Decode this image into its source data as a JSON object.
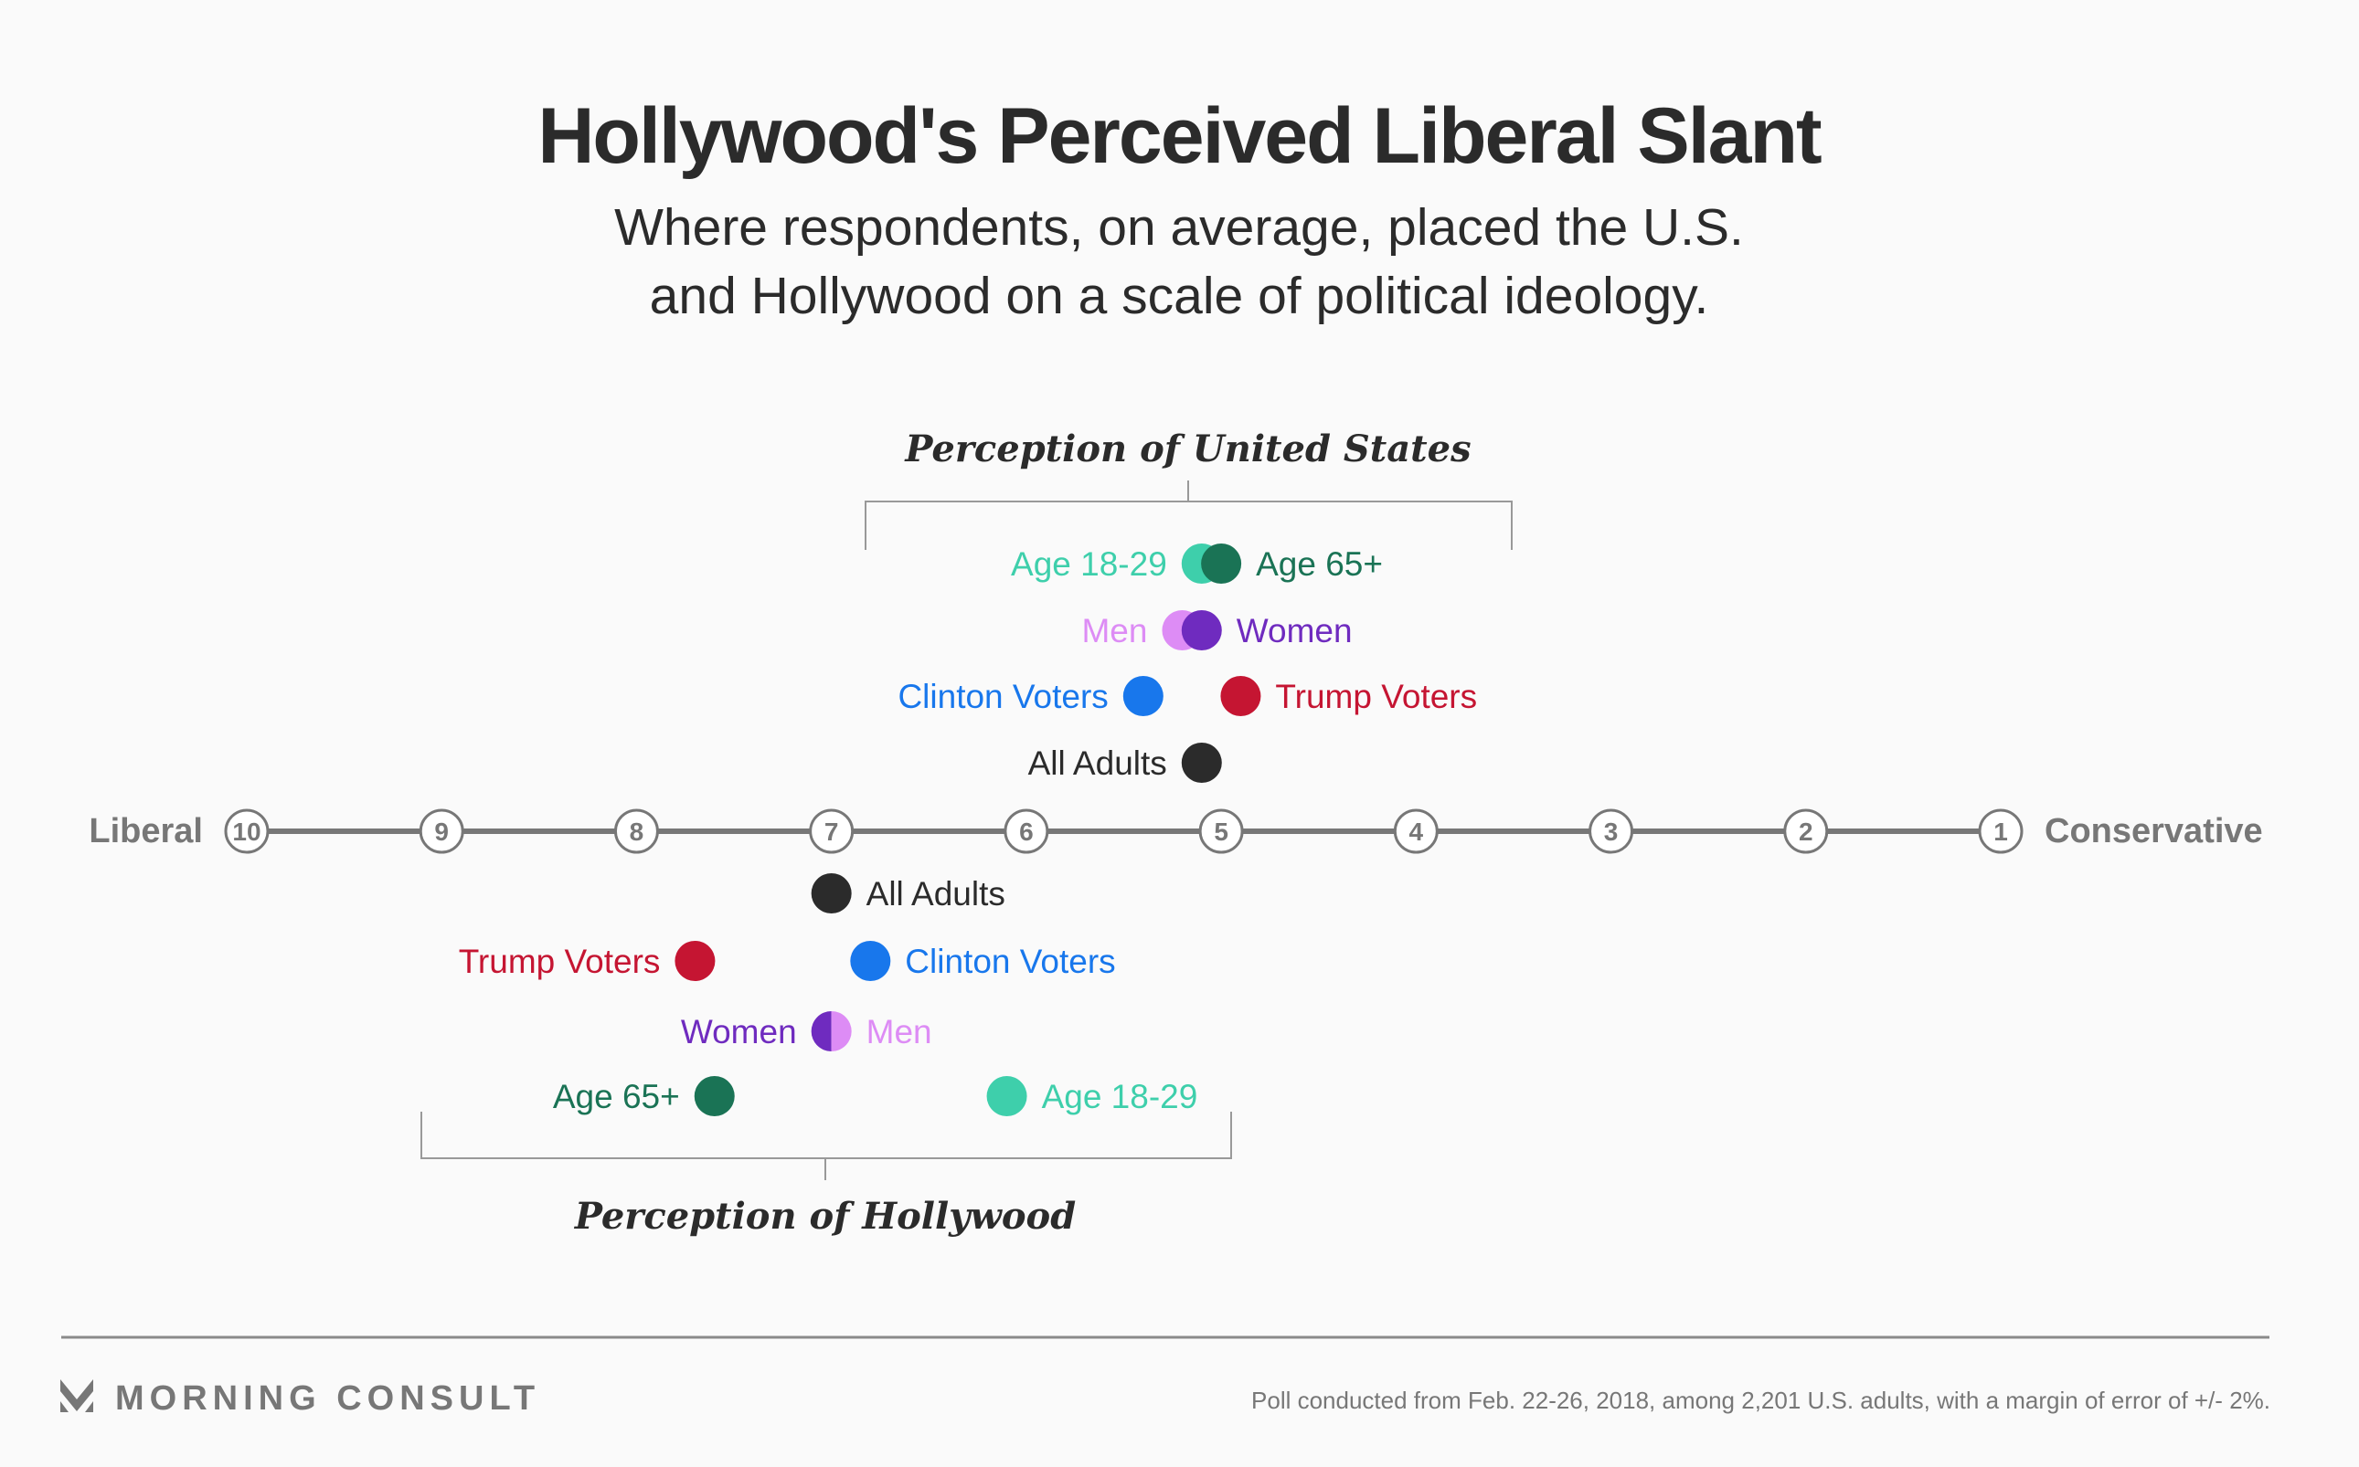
{
  "header": {
    "title": "Hollywood's Perceived Liberal Slant",
    "subtitle_lines": [
      "Where respondents, on average, placed the U.S.",
      "and Hollywood on a scale of political ideology."
    ]
  },
  "footer": {
    "brand": "MORNING CONSULT",
    "logo_icon": "morning-consult-chevron-logo",
    "footnote": "Poll conducted from Feb. 22-26, 2018, among 2,201 U.S. adults, with a margin of error of +/- 2%."
  },
  "colors": {
    "background": "#fafafa",
    "text": "#2b2b2b",
    "axis": "#777777",
    "age_18_29": "#3ecfab",
    "age_65_plus": "#1a7355",
    "men": "#dd8cf5",
    "women": "#6f2bbf",
    "clinton": "#1877ec",
    "trump": "#c51532",
    "all_adults": "#2b2b2b"
  },
  "chart_data": {
    "type": "scatter",
    "title": "Hollywood's Perceived Liberal Slant",
    "subtitle": "Where respondents, on average, placed the U.S. and Hollywood on a scale of political ideology.",
    "axis": {
      "left_label": "Liberal",
      "right_label": "Conservative",
      "ticks": [
        10,
        9,
        8,
        7,
        6,
        5,
        4,
        3,
        2,
        1
      ],
      "range": [
        10,
        1
      ],
      "direction": "left-to-right decreasing"
    },
    "series": [
      {
        "name": "Perception of United States",
        "placement": "above-axis",
        "rows": [
          {
            "points": [
              {
                "label": "Age 18-29",
                "value": 5.1,
                "color_key": "age_18_29",
                "label_side": "left"
              },
              {
                "label": "Age 65+",
                "value": 5.0,
                "color_key": "age_65_plus",
                "label_side": "right"
              }
            ]
          },
          {
            "points": [
              {
                "label": "Men",
                "value": 5.2,
                "color_key": "men",
                "label_side": "left"
              },
              {
                "label": "Women",
                "value": 5.1,
                "color_key": "women",
                "label_side": "right"
              }
            ]
          },
          {
            "points": [
              {
                "label": "Clinton Voters",
                "value": 5.4,
                "color_key": "clinton",
                "label_side": "left"
              },
              {
                "label": "Trump Voters",
                "value": 4.9,
                "color_key": "trump",
                "label_side": "right"
              }
            ]
          },
          {
            "points": [
              {
                "label": "All Adults",
                "value": 5.1,
                "color_key": "all_adults",
                "label_side": "left"
              }
            ]
          }
        ]
      },
      {
        "name": "Perception of Hollywood",
        "placement": "below-axis",
        "rows": [
          {
            "points": [
              {
                "label": "All Adults",
                "value": 7.0,
                "color_key": "all_adults",
                "label_side": "right"
              }
            ]
          },
          {
            "points": [
              {
                "label": "Trump Voters",
                "value": 7.7,
                "color_key": "trump",
                "label_side": "left"
              },
              {
                "label": "Clinton Voters",
                "value": 6.8,
                "color_key": "clinton",
                "label_side": "right"
              }
            ]
          },
          {
            "split": true,
            "points": [
              {
                "label": "Women",
                "value": 7.0,
                "color_key": "women",
                "label_side": "left"
              },
              {
                "label": "Men",
                "value": 7.0,
                "color_key": "men",
                "label_side": "right"
              }
            ]
          },
          {
            "points": [
              {
                "label": "Age 65+",
                "value": 7.6,
                "color_key": "age_65_plus",
                "label_side": "left"
              },
              {
                "label": "Age 18-29",
                "value": 6.1,
                "color_key": "age_18_29",
                "label_side": "right"
              }
            ]
          }
        ]
      }
    ],
    "grid": false,
    "legend": "none (inline labels)"
  }
}
